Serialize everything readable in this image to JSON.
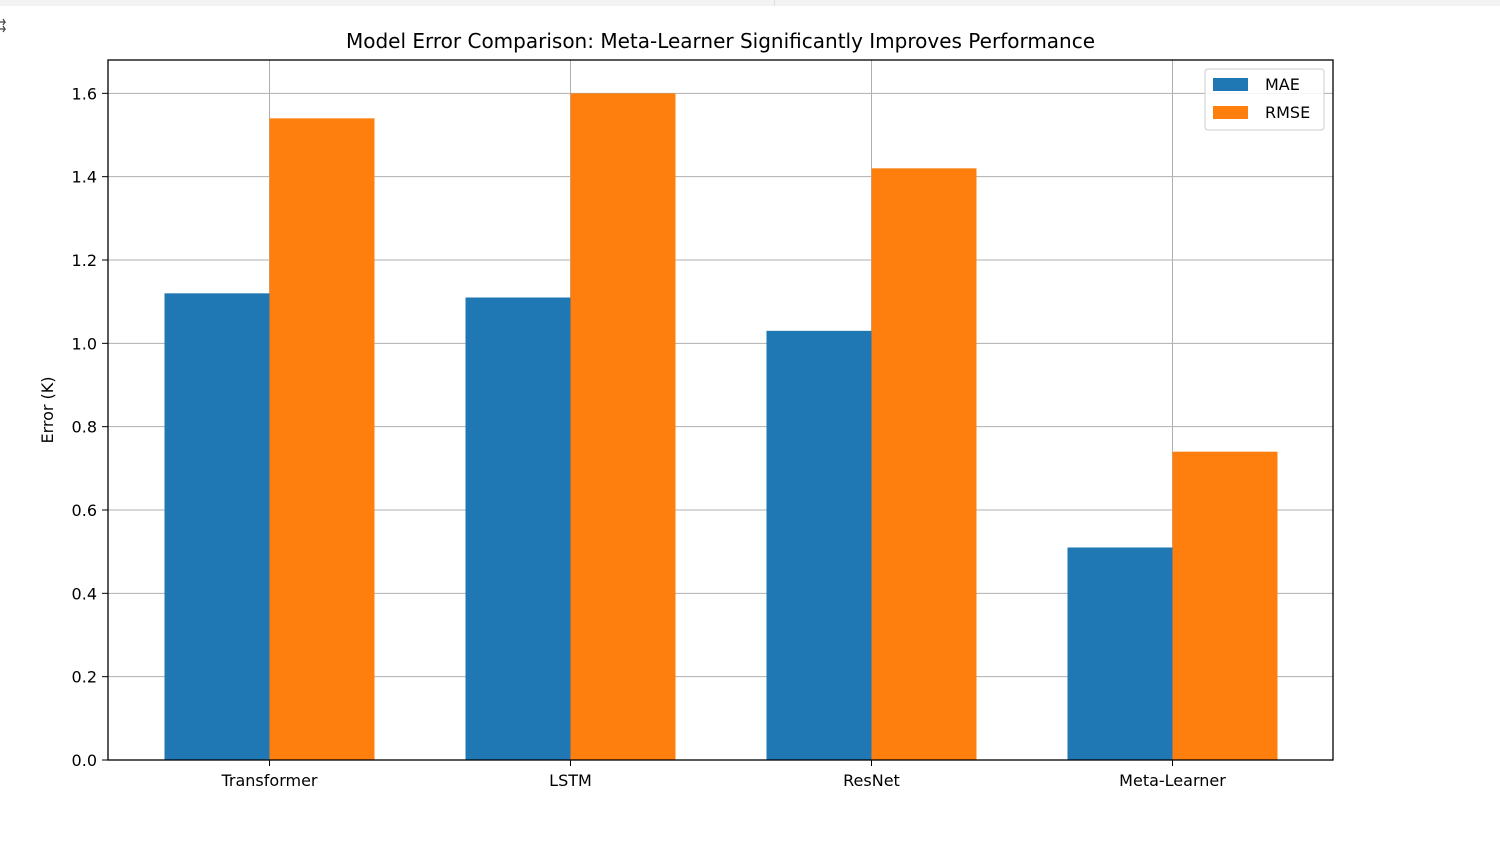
{
  "chart_data": {
    "type": "bar",
    "title": "Model Error Comparison: Meta-Learner Significantly Improves Performance",
    "xlabel": "",
    "ylabel": "Error (K)",
    "categories": [
      "Transformer",
      "LSTM",
      "ResNet",
      "Meta-Learner"
    ],
    "series": [
      {
        "name": "MAE",
        "color": "#1f77b4",
        "values": [
          1.12,
          1.11,
          1.03,
          0.51
        ]
      },
      {
        "name": "RMSE",
        "color": "#ff7f0e",
        "values": [
          1.54,
          1.6,
          1.42,
          0.74
        ]
      }
    ],
    "ylim": [
      0,
      1.68
    ],
    "yticks": [
      "0.0",
      "0.2",
      "0.4",
      "0.6",
      "0.8",
      "1.0",
      "1.2",
      "1.4",
      "1.6"
    ],
    "grid": true,
    "legend_position": "top-right"
  }
}
